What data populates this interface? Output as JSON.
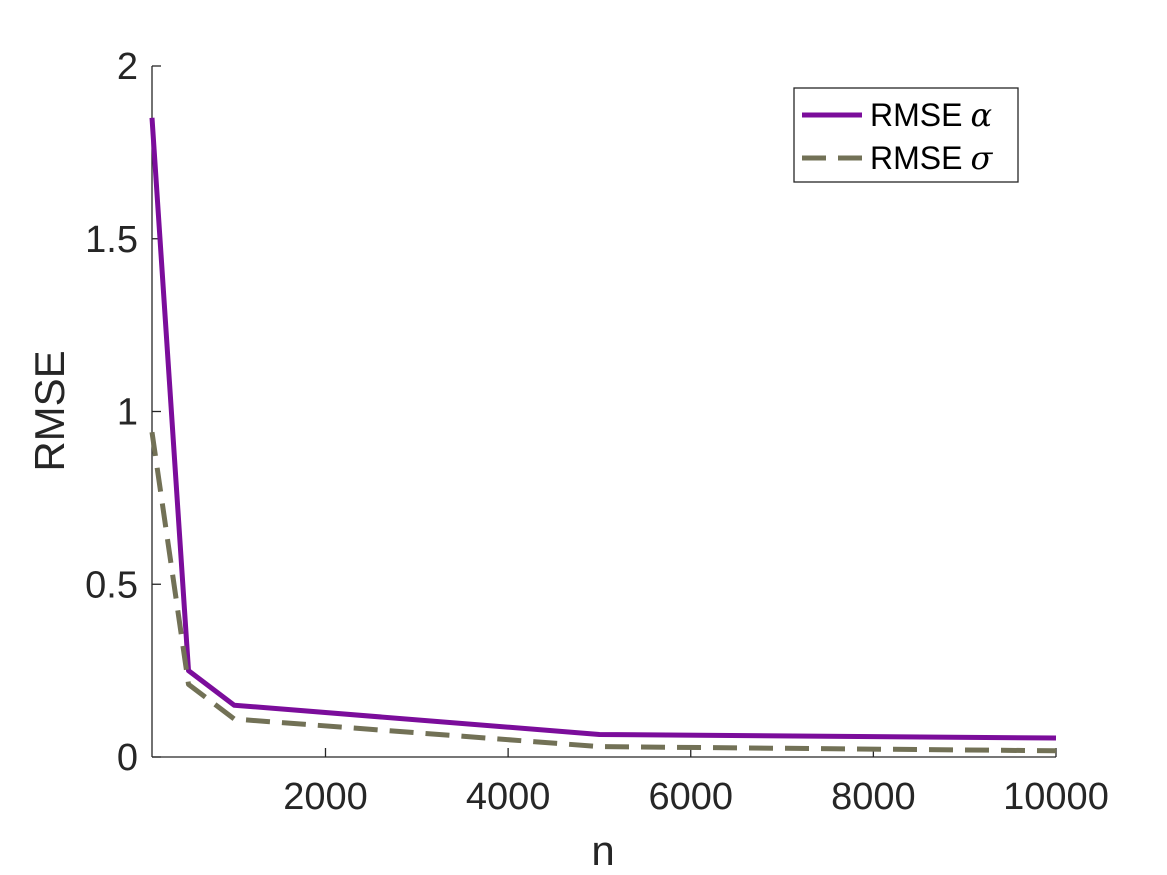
{
  "chart_data": {
    "type": "line",
    "title": "",
    "xlabel": "n",
    "ylabel": "RMSE",
    "xlim": [
      100,
      10000
    ],
    "ylim": [
      0,
      2
    ],
    "xticks": [
      2000,
      4000,
      6000,
      8000,
      10000
    ],
    "xtick_labels": [
      "2000",
      "4000",
      "6000",
      "8000",
      "10000"
    ],
    "yticks": [
      0,
      0.5,
      1,
      1.5,
      2
    ],
    "ytick_labels": [
      "0",
      "0.5",
      "1",
      "1.5",
      "2"
    ],
    "grid": false,
    "legend_position": "top-right",
    "x": [
      100,
      500,
      1000,
      5000,
      10000
    ],
    "series": [
      {
        "name": "RMSE α",
        "label_text": "RMSE",
        "label_symbol": "α",
        "color": "#7b0d9b",
        "dash": "solid",
        "values": [
          1.85,
          0.25,
          0.15,
          0.065,
          0.055
        ]
      },
      {
        "name": "RMSE σ",
        "label_text": "RMSE",
        "label_symbol": "σ",
        "color": "#727156",
        "dash": "dashed",
        "values": [
          0.94,
          0.21,
          0.11,
          0.03,
          0.018
        ]
      }
    ]
  }
}
